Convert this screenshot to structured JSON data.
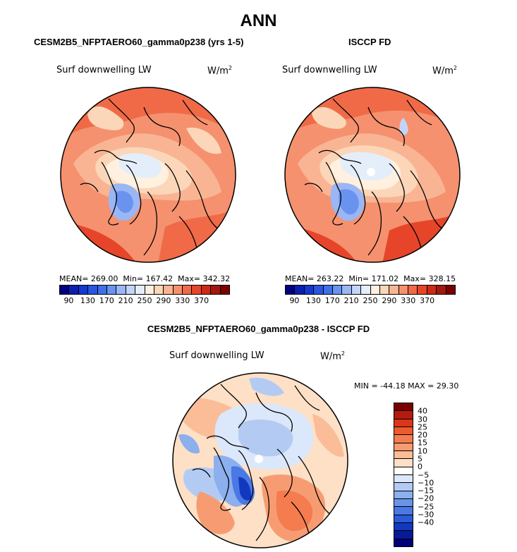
{
  "title": "ANN",
  "units_sup": "2",
  "panels": {
    "model": {
      "title": "CESM2B5_NFPTAERO60_gamma0p238 (yrs 1-5)",
      "variable": "Surf downwelling LW",
      "units": "W/m",
      "mean_label": "MEAN= 269.00",
      "min_label": "Min= 167.42",
      "max_label": "Max= 342.32"
    },
    "obs": {
      "title": "ISCCP FD",
      "variable": "Surf downwelling LW",
      "units": "W/m",
      "mean_label": "MEAN= 263.22",
      "min_label": "Min= 171.02",
      "max_label": "Max= 328.15"
    },
    "diff": {
      "title": "CESM2B5_NFPTAERO60_gamma0p238 - ISCCP FD",
      "variable": "Surf downwelling LW",
      "units": "W/m",
      "minmax_label": "MIN = -44.18 MAX =  29.30"
    }
  },
  "colorbar_abs": {
    "colors": [
      "#000080",
      "#0a1fb0",
      "#1538d0",
      "#2a55e0",
      "#3f70ea",
      "#6a93f0",
      "#9ab6f4",
      "#c2d5f8",
      "#e4eefb",
      "#fff0e0",
      "#fcd6b8",
      "#f9b593",
      "#f5916e",
      "#f06a48",
      "#e7452a",
      "#cc2a17",
      "#a3170c",
      "#7a0000"
    ],
    "tick_labels": [
      "90",
      "130",
      "170",
      "210",
      "250",
      "290",
      "330",
      "370"
    ]
  },
  "colorbar_diff": {
    "colors": [
      "#7a0000",
      "#b51a10",
      "#dc3618",
      "#ee5a30",
      "#f47c4f",
      "#f79c72",
      "#fabd98",
      "#fde0c6",
      "#ffffff",
      "#dbe7fa",
      "#b3cbf3",
      "#8cafee",
      "#6a93ea",
      "#4a78e4",
      "#2a5ad8",
      "#1238c0",
      "#081a98",
      "#00007a"
    ],
    "tick_labels": [
      "40",
      "30",
      "25",
      "20",
      "15",
      "10",
      "5",
      "0",
      "−5",
      "−10",
      "−15",
      "−20",
      "−25",
      "−30",
      "−40"
    ]
  }
}
